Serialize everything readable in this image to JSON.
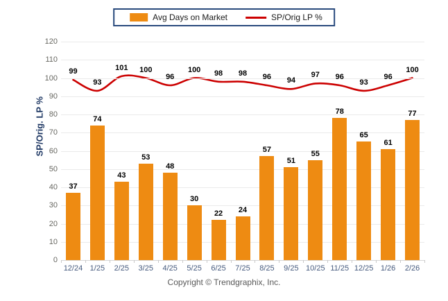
{
  "legend": {
    "bar_label": "Avg Days on Market",
    "line_label": "SP/Orig LP %"
  },
  "y_axis_title": "SP/Orig. LP %",
  "footer": {
    "copyright": "Copyright © Trendgraphix, Inc."
  },
  "colors": {
    "bar": "#EE8B12",
    "line": "#CC0000",
    "legend_border": "#28497C",
    "axis_title_text": "#1F3864",
    "x_tick_label": "#44597D",
    "y_tick_label": "#666660",
    "gridline": "#EAEAEA",
    "data_label": "#000000"
  },
  "chart_data": {
    "type": "bar",
    "subtype": "bar+line-combo",
    "categories": [
      "12/24",
      "1/25",
      "2/25",
      "3/25",
      "4/25",
      "5/25",
      "6/25",
      "7/25",
      "8/25",
      "9/25",
      "10/25",
      "11/25",
      "12/25",
      "1/26",
      "2/26"
    ],
    "series": [
      {
        "name": "Avg Days on Market",
        "type": "bar",
        "color": "#EE8B12",
        "values": [
          37,
          74,
          43,
          53,
          48,
          30,
          22,
          24,
          57,
          51,
          55,
          78,
          65,
          61,
          77
        ]
      },
      {
        "name": "SP/Orig LP %",
        "type": "line",
        "color": "#CC0000",
        "values": [
          99,
          93,
          101,
          100,
          96,
          100,
          98,
          98,
          96,
          94,
          97,
          96,
          93,
          96,
          100
        ]
      }
    ],
    "title": "",
    "xlabel": "",
    "ylabel": "SP/Orig. LP %",
    "ylim": [
      0,
      120
    ],
    "ytick_step": 10,
    "grid": true,
    "legend_position": "top",
    "data_labels": true
  }
}
